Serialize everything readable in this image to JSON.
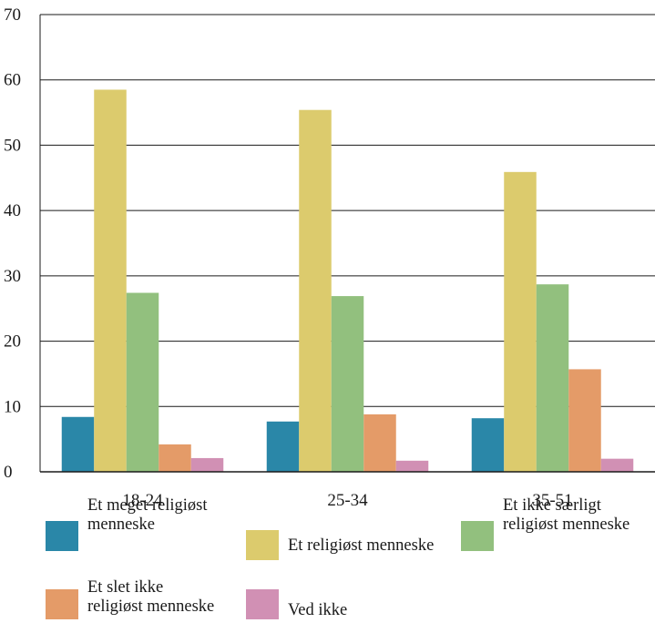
{
  "chart_data": {
    "type": "bar",
    "categories": [
      "18-24",
      "25-34",
      "35-51"
    ],
    "series": [
      {
        "name": "Et meget religiøst menneske",
        "color": "#2a87a8",
        "values": [
          8.4,
          7.7,
          8.2
        ]
      },
      {
        "name": "Et religiøst menneske",
        "color": "#dccb6d",
        "values": [
          58.5,
          55.4,
          45.9
        ]
      },
      {
        "name": "Et ikke særligt religiøst menneske",
        "color": "#92c07e",
        "values": [
          27.4,
          26.9,
          28.7
        ]
      },
      {
        "name": "Et slet ikke religiøst menneske",
        "color": "#e49b68",
        "values": [
          4.2,
          8.8,
          15.7
        ]
      },
      {
        "name": "Ved ikke",
        "color": "#d190b4",
        "values": [
          2.1,
          1.7,
          2.0
        ]
      }
    ],
    "ylim": [
      0,
      70
    ],
    "yticks": [
      0,
      10,
      20,
      30,
      40,
      50,
      60,
      70
    ],
    "grid": true,
    "legend_position": "bottom",
    "title": "",
    "xlabel": "",
    "ylabel": ""
  },
  "legend": {
    "items": [
      {
        "label": "Et meget religiøst\nmenneske",
        "color": "#2a87a8"
      },
      {
        "label": "Et religiøst menneske",
        "color": "#dccb6d"
      },
      {
        "label": "Et ikke særligt\nreligiøst menneske",
        "color": "#92c07e"
      },
      {
        "label": "Et slet ikke\nreligiøst menneske",
        "color": "#e49b68"
      },
      {
        "label": "Ved ikke",
        "color": "#d190b4"
      }
    ]
  }
}
